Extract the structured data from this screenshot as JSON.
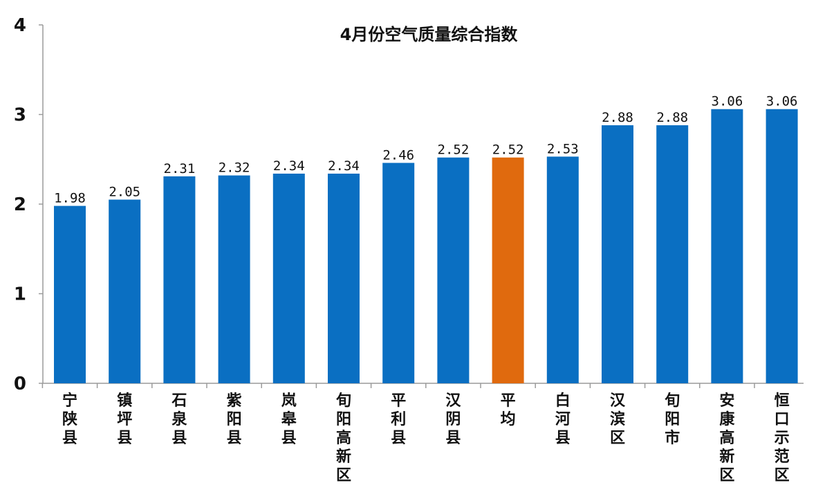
{
  "chart_data": {
    "type": "bar",
    "title": "4月份空气质量综合指数",
    "categories": [
      "宁陕县",
      "镇坪县",
      "石泉县",
      "紫阳县",
      "岚皋县",
      "旬阳高新区",
      "平利县",
      "汉阴县",
      "平均",
      "白河县",
      "汉滨区",
      "旬阳市",
      "安康高新区",
      "恒口示范区"
    ],
    "values": [
      1.98,
      2.05,
      2.31,
      2.32,
      2.34,
      2.34,
      2.46,
      2.52,
      2.52,
      2.53,
      2.88,
      2.88,
      3.06,
      3.06
    ],
    "value_labels": [
      "1.98",
      "2.05",
      "2.31",
      "2.32",
      "2.34",
      "2.34",
      "2.46",
      "2.52",
      "2.52",
      "2.53",
      "2.88",
      "2.88",
      "3.06",
      "3.06"
    ],
    "ylim": [
      0,
      4
    ],
    "yticks": [
      "0",
      "1",
      "2",
      "3",
      "4"
    ],
    "xlabel": "",
    "ylabel": "",
    "grid": false,
    "legend": "none",
    "colors": {
      "bar": "#0a6fc2",
      "highlight": "#e06a0e",
      "axis": "#9a9a9a"
    },
    "highlight_category": "平均"
  }
}
